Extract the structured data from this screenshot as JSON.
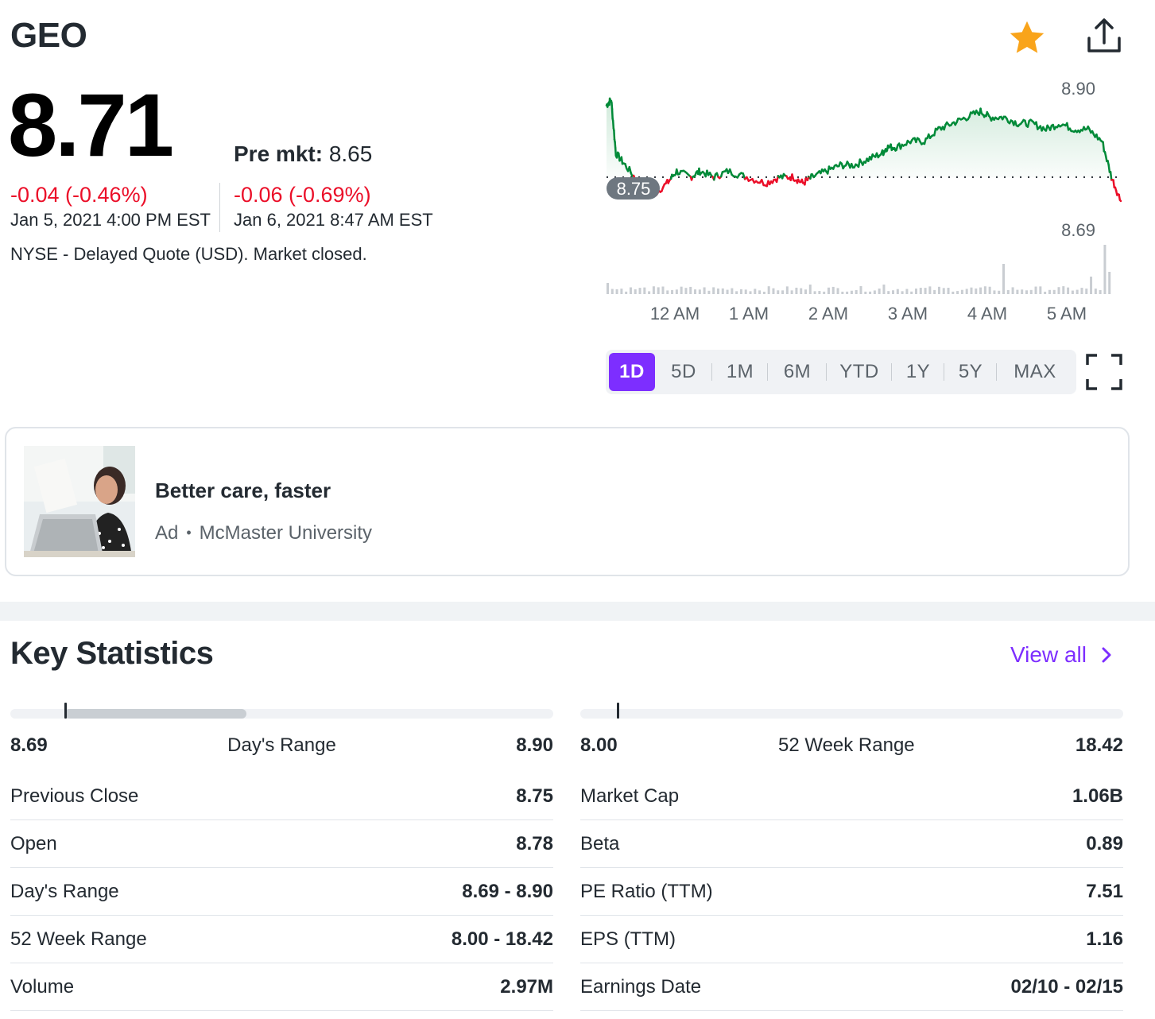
{
  "header": {
    "ticker": "GEO",
    "star_icon": "star-icon",
    "share_icon": "share-icon",
    "star_color": "#f9a41b"
  },
  "quote": {
    "price": "8.71",
    "pre_market_label": "Pre mkt:",
    "pre_market_price": "8.65",
    "change_close": "-0.04 (-0.46%)",
    "change_close_date": "Jan 5, 2021 4:00 PM EST",
    "change_premarket": "-0.06 (-0.69%)",
    "change_premarket_date": "Jan 6, 2021 8:47 AM EST",
    "note": "NYSE - Delayed Quote (USD). Market closed.",
    "down_color": "#eb0f29",
    "up_color": "#008a38"
  },
  "chart": {
    "y_high_label": "8.90",
    "y_low_label": "8.69",
    "prev_close_label": "8.75",
    "x_labels": [
      "12 AM",
      "1 AM",
      "2 AM",
      "3 AM",
      "4 AM",
      "5 AM"
    ],
    "ranges": [
      {
        "label": "1D",
        "active": true
      },
      {
        "label": "5D",
        "active": false
      },
      {
        "label": "1M",
        "active": false
      },
      {
        "label": "6M",
        "active": false
      },
      {
        "label": "YTD",
        "active": false
      },
      {
        "label": "1Y",
        "active": false
      },
      {
        "label": "5Y",
        "active": false
      },
      {
        "label": "MAX",
        "active": false
      }
    ],
    "active_color": "#7d2eff",
    "fullscreen_icon": "fullscreen-icon"
  },
  "chart_data": {
    "type": "line",
    "title": "",
    "xlabel": "",
    "ylabel": "",
    "ylim": [
      8.69,
      8.9
    ],
    "reference_line": 8.75,
    "x_ticks": [
      "12 AM",
      "1 AM",
      "2 AM",
      "3 AM",
      "4 AM",
      "5 AM"
    ],
    "x": [
      0,
      0.05,
      0.1,
      0.2,
      0.35,
      0.5,
      0.65,
      0.75,
      0.9,
      1.0,
      1.15,
      1.3,
      1.5,
      1.7,
      1.85,
      2.0,
      2.1,
      2.2,
      2.35,
      2.5,
      2.65,
      2.8,
      2.95,
      3.0,
      3.1,
      3.25,
      3.4,
      3.55,
      3.7,
      3.85,
      4.0,
      4.1,
      4.25,
      4.4,
      4.55,
      4.7,
      4.85,
      5.0,
      5.15,
      5.3,
      5.4,
      5.5
    ],
    "values": [
      8.87,
      8.88,
      8.79,
      8.77,
      8.74,
      8.72,
      8.74,
      8.76,
      8.75,
      8.76,
      8.75,
      8.76,
      8.75,
      8.74,
      8.75,
      8.75,
      8.74,
      8.75,
      8.76,
      8.77,
      8.77,
      8.78,
      8.79,
      8.8,
      8.8,
      8.81,
      8.81,
      8.83,
      8.84,
      8.85,
      8.86,
      8.85,
      8.85,
      8.84,
      8.84,
      8.83,
      8.84,
      8.83,
      8.83,
      8.81,
      8.75,
      8.71
    ],
    "volume_peaks_at": [
      "4 AM",
      "5 AM"
    ]
  },
  "ad": {
    "title": "Better care, faster",
    "label": "Ad",
    "sponsor": "McMaster University"
  },
  "key_statistics": {
    "title": "Key Statistics",
    "view_all": "View all",
    "chevron_icon": "chevron-right-icon",
    "days_range_bar": {
      "low": "8.69",
      "label": "Day's Range",
      "high": "8.90",
      "current_fraction": 0.1,
      "fill_fraction": 0.435
    },
    "week52_range_bar": {
      "low": "8.00",
      "label": "52 Week Range",
      "high": "18.42",
      "current_fraction": 0.068
    },
    "left": [
      {
        "k": "Previous Close",
        "v": "8.75"
      },
      {
        "k": "Open",
        "v": "8.78"
      },
      {
        "k": "Day's Range",
        "v": "8.69 - 8.90"
      },
      {
        "k": "52 Week Range",
        "v": "8.00 - 18.42"
      },
      {
        "k": "Volume",
        "v": "2.97M"
      }
    ],
    "right": [
      {
        "k": "Market Cap",
        "v": "1.06B"
      },
      {
        "k": "Beta",
        "v": "0.89"
      },
      {
        "k": "PE Ratio (TTM)",
        "v": "7.51"
      },
      {
        "k": "EPS (TTM)",
        "v": "1.16"
      },
      {
        "k": "Earnings Date",
        "v": "02/10 - 02/15"
      }
    ]
  }
}
